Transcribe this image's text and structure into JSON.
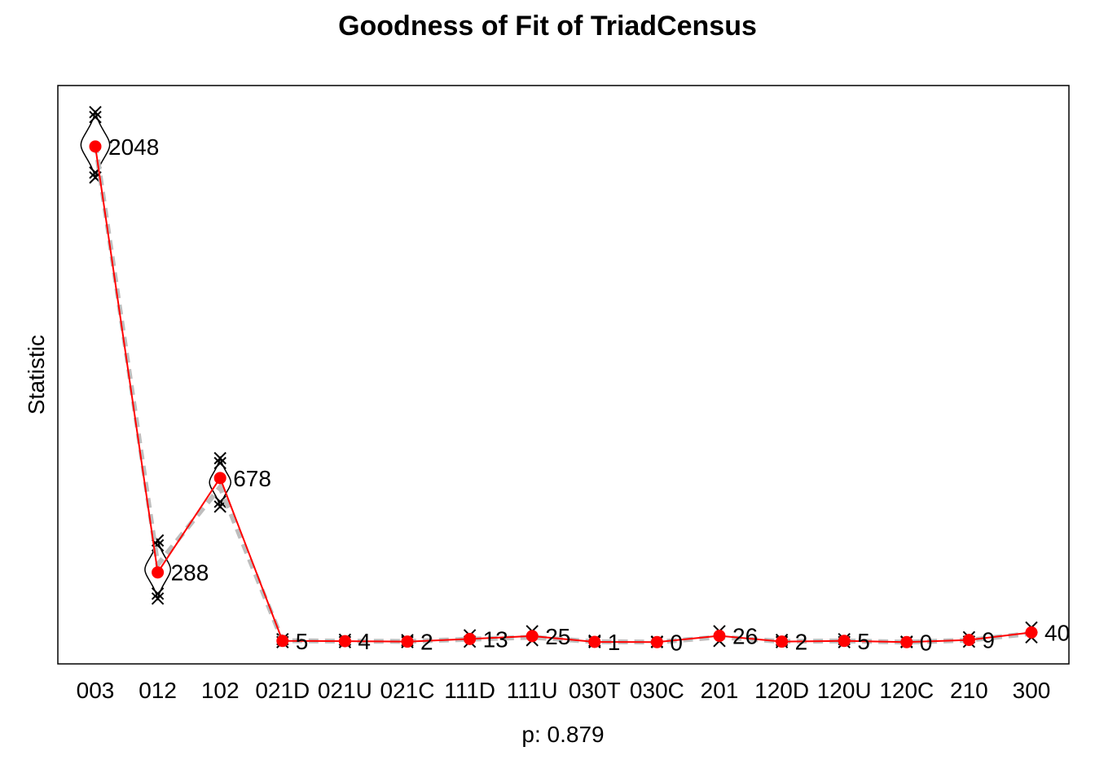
{
  "chart_data": {
    "type": "line",
    "title": "Goodness of Fit of TriadCensus",
    "xlabel": "p: 0.879",
    "ylabel": "Statistic",
    "categories": [
      "003",
      "012",
      "102",
      "021D",
      "021U",
      "021C",
      "111D",
      "111U",
      "030T",
      "030C",
      "201",
      "120D",
      "120U",
      "120C",
      "210",
      "300"
    ],
    "observed": {
      "values": [
        2048,
        288,
        678,
        5,
        4,
        2,
        13,
        25,
        1,
        0,
        26,
        2,
        5,
        0,
        9,
        40
      ],
      "labels": [
        "2048",
        "288",
        "678",
        "5",
        "4",
        "2",
        "13",
        "25",
        "1",
        "0",
        "26",
        "2",
        "5",
        "0",
        "9",
        "40"
      ]
    },
    "simulated_mean": [
      2060,
      320,
      640,
      6,
      4,
      3,
      12,
      20,
      2,
      0,
      21,
      3,
      5,
      0,
      8,
      36
    ],
    "simulated_range": [
      [
        1920,
        2190
      ],
      [
        180,
        420
      ],
      [
        560,
        760
      ],
      [
        0,
        12
      ],
      [
        0,
        10
      ],
      [
        0,
        8
      ],
      [
        2,
        28
      ],
      [
        8,
        45
      ],
      [
        0,
        6
      ],
      [
        0,
        2
      ],
      [
        5,
        45
      ],
      [
        0,
        9
      ],
      [
        0,
        12
      ],
      [
        0,
        2
      ],
      [
        2,
        20
      ],
      [
        20,
        60
      ]
    ],
    "ylim": [
      -90,
      2300
    ],
    "grid": false,
    "colors": {
      "observed": "#ff0000",
      "simulated_line": "#bebebe",
      "simulated_marks": "#000000",
      "violin": "#000000"
    }
  }
}
